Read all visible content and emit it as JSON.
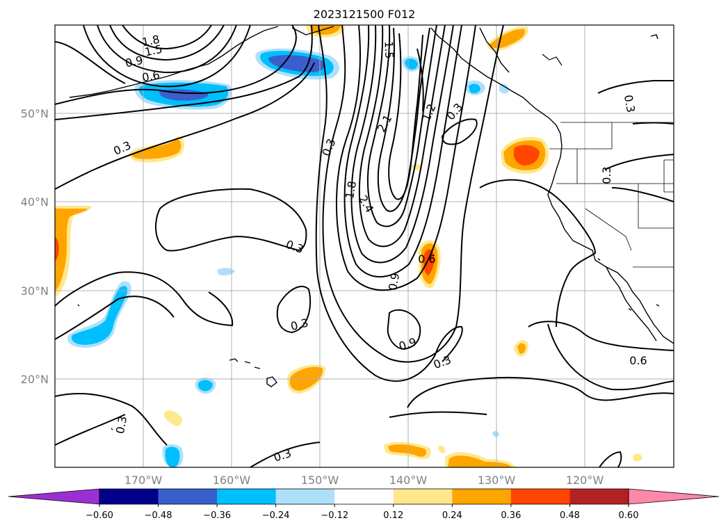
{
  "title": "2023121500 F012",
  "latitude_labels": [
    "50°N",
    "40°N",
    "30°N",
    "20°N"
  ],
  "longitude_labels": [
    "170°W",
    "160°W",
    "150°W",
    "140°W",
    "130°W",
    "120°W"
  ],
  "contour_labels": [
    "1.8",
    "1.5",
    "0.9",
    "0.6",
    "0.3",
    "1.5",
    "2.1",
    "1.2",
    "0.3",
    "0.3",
    "1.8",
    "2.4",
    "0.3",
    "0.6",
    "0.9",
    "0.3",
    "0.9",
    "0.3",
    "0.6",
    "0.3",
    "0.3",
    "0.3",
    "0.3"
  ],
  "colorbar": {
    "ticks": [
      "−0.60",
      "−0.48",
      "−0.36",
      "−0.24",
      "−0.12",
      "0.12",
      "0.24",
      "0.36",
      "0.48",
      "0.60"
    ],
    "colors": [
      "#9b30d2",
      "#00008b",
      "#3a5fcd",
      "#00bfff",
      "#aee0fa",
      "#ffffff",
      "#ffe88c",
      "#ffa500",
      "#ff4500",
      "#b22222",
      "#ff88aa"
    ]
  },
  "fill_colors": {
    "neg_light": "#aee0fa",
    "neg_mid": "#00bfff",
    "neg_dark": "#3a5fcd",
    "pos_light": "#ffe88c",
    "pos_mid": "#ffa500",
    "pos_dark": "#ff4500"
  }
}
